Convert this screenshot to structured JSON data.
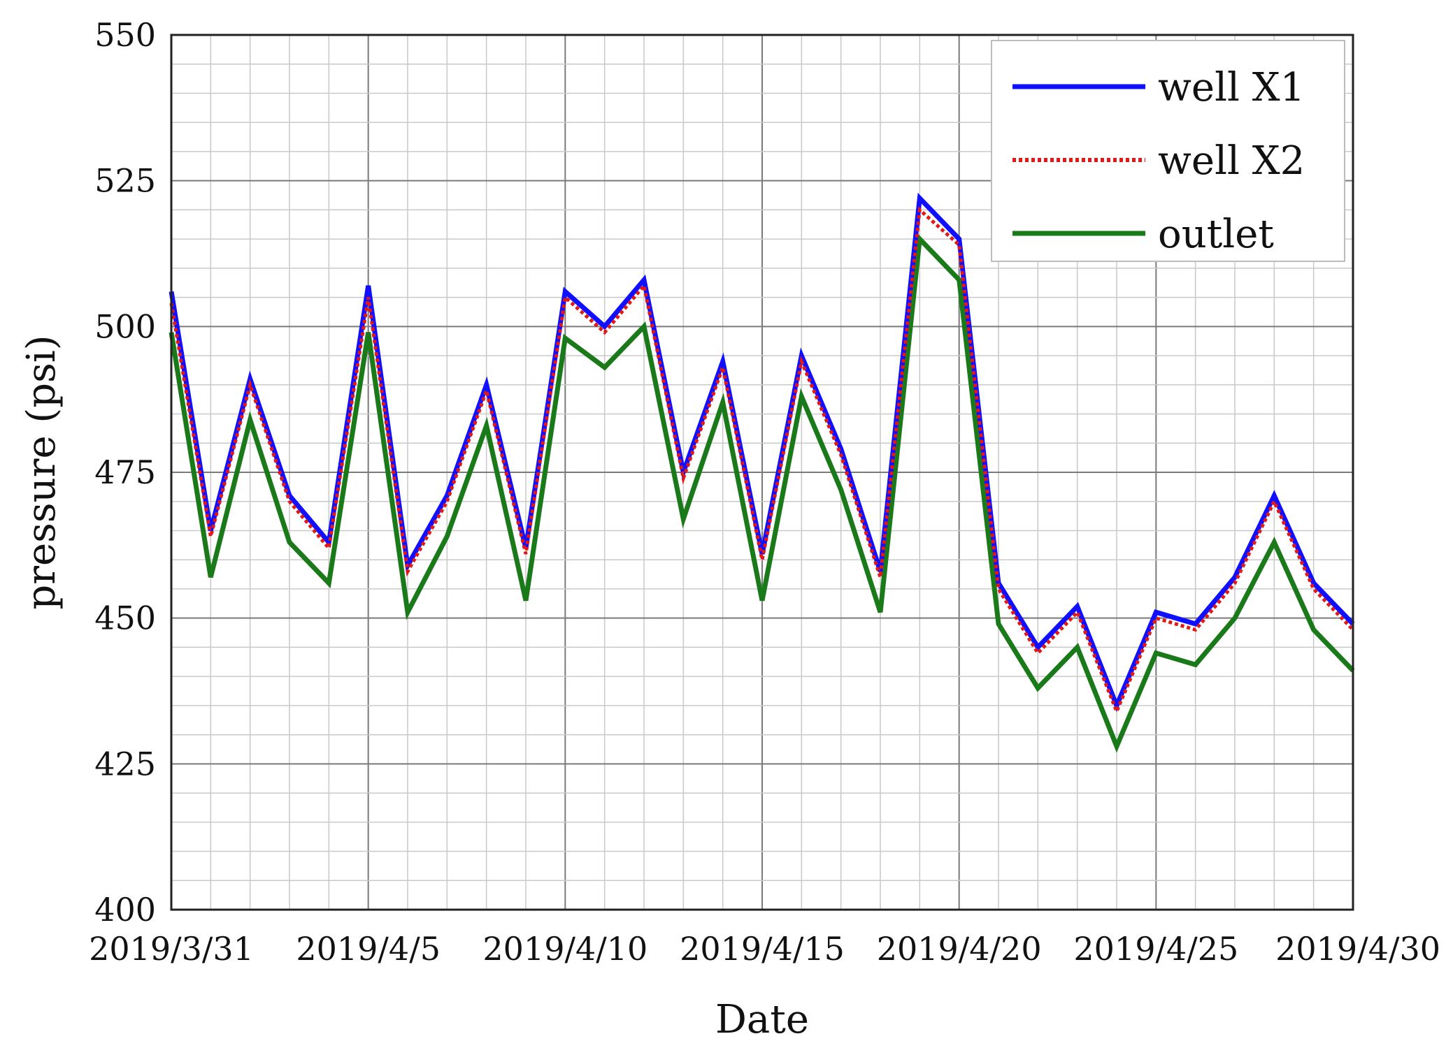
{
  "chart_data": {
    "type": "line",
    "title": "",
    "xlabel": "Date",
    "ylabel": "pressure (psi)",
    "ylim": [
      400,
      550
    ],
    "yticks": [
      400,
      425,
      450,
      475,
      500,
      525,
      550
    ],
    "xlim": [
      "2019/3/31",
      "2019/4/30"
    ],
    "xticks": [
      "2019/3/31",
      "2019/4/5",
      "2019/4/10",
      "2019/4/15",
      "2019/4/20",
      "2019/4/25",
      "2019/4/30"
    ],
    "grid": true,
    "legend": "top-right",
    "x": [
      "2019/3/31",
      "2019/4/1",
      "2019/4/2",
      "2019/4/3",
      "2019/4/4",
      "2019/4/5",
      "2019/4/6",
      "2019/4/7",
      "2019/4/8",
      "2019/4/9",
      "2019/4/10",
      "2019/4/11",
      "2019/4/12",
      "2019/4/13",
      "2019/4/14",
      "2019/4/15",
      "2019/4/16",
      "2019/4/17",
      "2019/4/18",
      "2019/4/19",
      "2019/4/20",
      "2019/4/21",
      "2019/4/22",
      "2019/4/23",
      "2019/4/24",
      "2019/4/25",
      "2019/4/26",
      "2019/4/27",
      "2019/4/28",
      "2019/4/29",
      "2019/4/30"
    ],
    "series": [
      {
        "name": "well X1",
        "color": "#1010ff",
        "style": "solid",
        "values": [
          506,
          465,
          491,
          471,
          463,
          507,
          459,
          471,
          490,
          462,
          506,
          500,
          508,
          475,
          494,
          461,
          495,
          479,
          458,
          522,
          515,
          456,
          445,
          452,
          435,
          451,
          449,
          457,
          471,
          456,
          449
        ]
      },
      {
        "name": "well X2",
        "color": "#e01818",
        "style": "dotted",
        "values": [
          504,
          464,
          490,
          470,
          462,
          505,
          458,
          470,
          489,
          461,
          505,
          499,
          507,
          474,
          493,
          460,
          494,
          478,
          457,
          520,
          514,
          455,
          444,
          451,
          434,
          450,
          448,
          456,
          470,
          455,
          448
        ]
      },
      {
        "name": "outlet",
        "color": "#1a7a1a",
        "style": "solid",
        "values": [
          499,
          457,
          484,
          463,
          456,
          499,
          451,
          464,
          483,
          453,
          498,
          493,
          500,
          467,
          487,
          453,
          488,
          472,
          451,
          515,
          508,
          449,
          438,
          445,
          428,
          444,
          442,
          450,
          463,
          448,
          441
        ]
      }
    ]
  }
}
